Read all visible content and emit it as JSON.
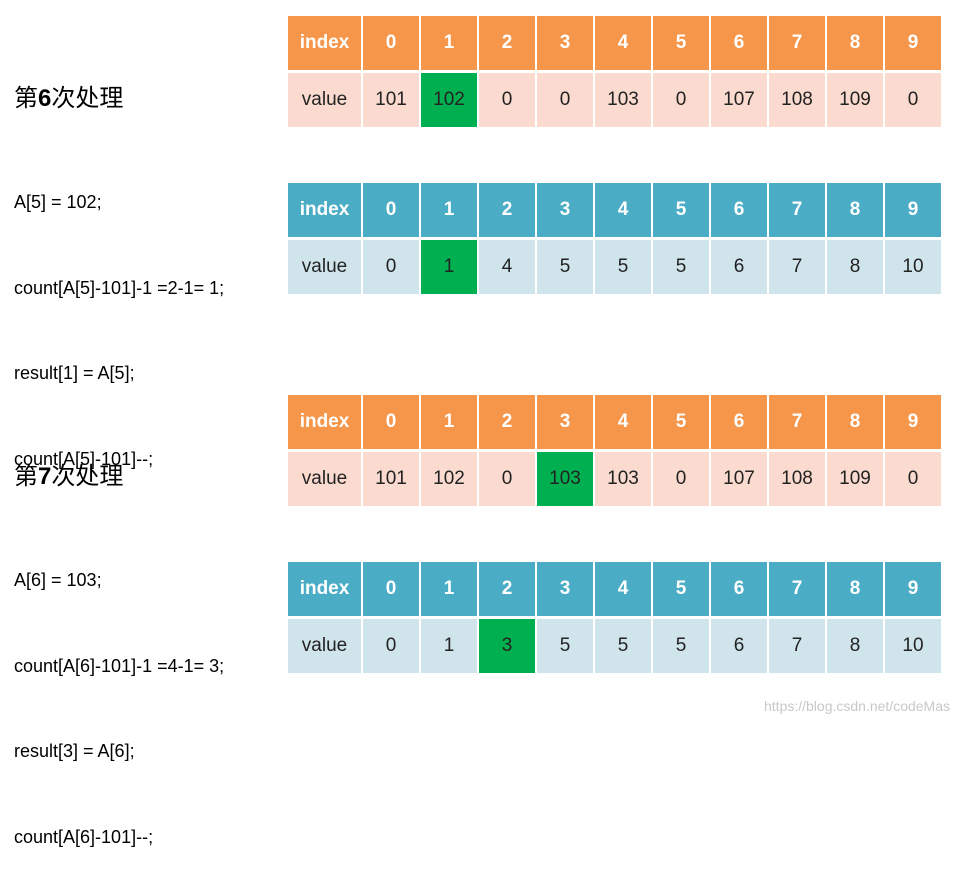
{
  "steps": [
    {
      "title_prefix": "第",
      "title_num": "6",
      "title_suffix": "次处理",
      "code": [
        "A[5] = 102;",
        "count[A[5]-101]-1 =2-1= 1;",
        "result[1] = A[5];",
        "count[A[5]-101]--;"
      ],
      "tables": [
        {
          "color": "orange",
          "header_label": "index",
          "value_label": "value",
          "indices": [
            "0",
            "1",
            "2",
            "3",
            "4",
            "5",
            "6",
            "7",
            "8",
            "9"
          ],
          "values": [
            "101",
            "102",
            "0",
            "0",
            "103",
            "0",
            "107",
            "108",
            "109",
            "0"
          ],
          "highlight": 1
        },
        {
          "color": "blue",
          "header_label": "index",
          "value_label": "value",
          "indices": [
            "0",
            "1",
            "2",
            "3",
            "4",
            "5",
            "6",
            "7",
            "8",
            "9"
          ],
          "values": [
            "0",
            "1",
            "4",
            "5",
            "5",
            "5",
            "6",
            "7",
            "8",
            "10"
          ],
          "highlight": 1
        }
      ]
    },
    {
      "title_prefix": "第",
      "title_num": "7",
      "title_suffix": "次处理",
      "code": [
        "A[6] = 103;",
        "count[A[6]-101]-1 =4-1= 3;",
        "result[3] = A[6];",
        "count[A[6]-101]--;"
      ],
      "tables": [
        {
          "color": "orange",
          "header_label": "index",
          "value_label": "value",
          "indices": [
            "0",
            "1",
            "2",
            "3",
            "4",
            "5",
            "6",
            "7",
            "8",
            "9"
          ],
          "values": [
            "101",
            "102",
            "0",
            "103",
            "103",
            "0",
            "107",
            "108",
            "109",
            "0"
          ],
          "highlight": 3
        },
        {
          "color": "blue",
          "header_label": "index",
          "value_label": "value",
          "indices": [
            "0",
            "1",
            "2",
            "3",
            "4",
            "5",
            "6",
            "7",
            "8",
            "9"
          ],
          "values": [
            "0",
            "1",
            "3",
            "5",
            "5",
            "5",
            "6",
            "7",
            "8",
            "10"
          ],
          "highlight": 2
        }
      ]
    }
  ],
  "colors": {
    "orange_header": "#f5964a",
    "orange_value": "#fbdbd0",
    "blue_header": "#4bacc6",
    "blue_value": "#d0e4ec",
    "highlight": "#00b050"
  },
  "watermark": "https://blog.csdn.net/codeMas"
}
